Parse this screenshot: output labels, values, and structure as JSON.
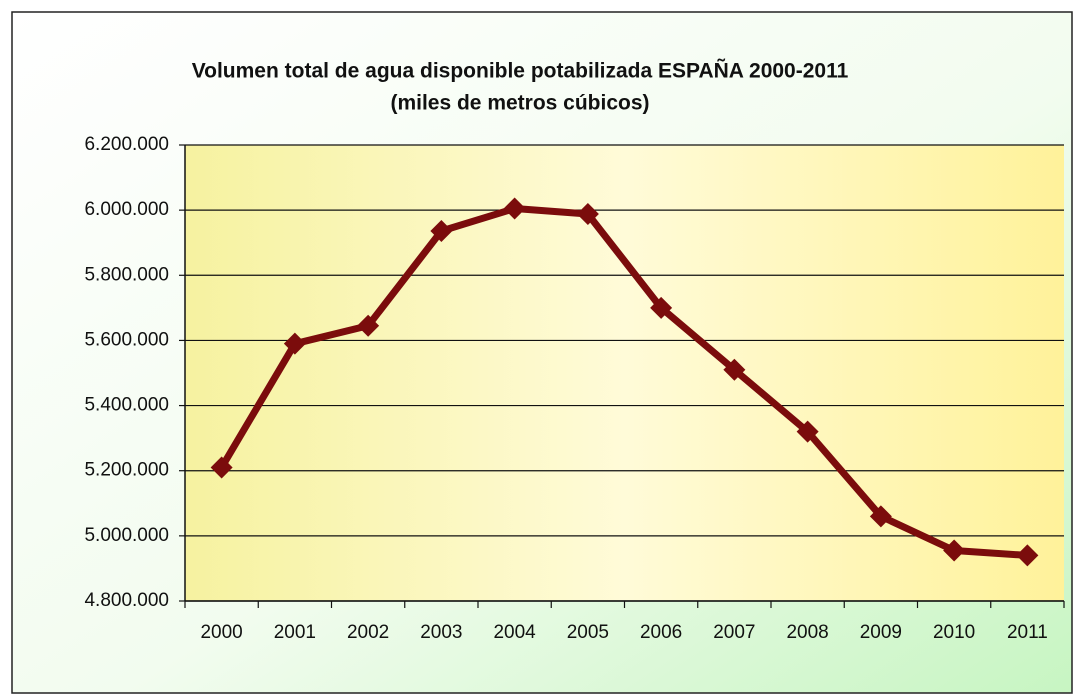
{
  "chart_data": {
    "type": "line",
    "title": "Volumen total de agua disponible potabilizada ESPAÑA 2000-2011",
    "subtitle": "(miles de metros cúbicos)",
    "categories": [
      "2000",
      "2001",
      "2002",
      "2003",
      "2004",
      "2005",
      "2006",
      "2007",
      "2008",
      "2009",
      "2010",
      "2011"
    ],
    "series": [
      {
        "name": "Volumen total",
        "color": "#7b0c0c",
        "values": [
          5210000,
          5590000,
          5645000,
          5936000,
          6005000,
          5988000,
          5700000,
          5510000,
          5320000,
          5060000,
          4955000,
          4940000
        ]
      }
    ],
    "ylim": [
      4800000,
      6200000
    ],
    "yticks": [
      {
        "value": 4800000,
        "label": "4.800.000"
      },
      {
        "value": 5000000,
        "label": "5.000.000"
      },
      {
        "value": 5200000,
        "label": "5.200.000"
      },
      {
        "value": 5400000,
        "label": "5.400.000"
      },
      {
        "value": 5600000,
        "label": "5.600.000"
      },
      {
        "value": 5800000,
        "label": "5.800.000"
      },
      {
        "value": 6000000,
        "label": "6.000.000"
      },
      {
        "value": 6200000,
        "label": "6.200.000"
      }
    ],
    "grid": true
  }
}
